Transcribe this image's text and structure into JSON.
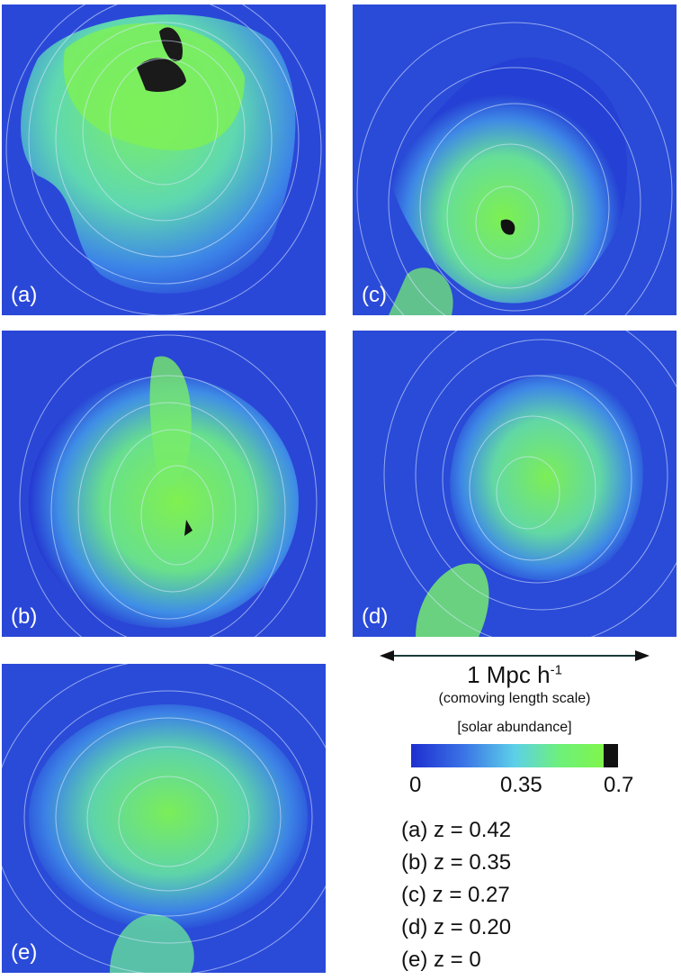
{
  "panels": [
    {
      "id": "a",
      "label": "(a)"
    },
    {
      "id": "b",
      "label": "(b)"
    },
    {
      "id": "c",
      "label": "(c)"
    },
    {
      "id": "d",
      "label": "(d)"
    },
    {
      "id": "e",
      "label": "(e)"
    }
  ],
  "scale_bar": {
    "length_text": "1 Mpc h",
    "exponent": "-1",
    "subtitle": "(comoving length scale)"
  },
  "colorbar": {
    "title": "[solar abundance]",
    "ticks": [
      "0",
      "0.35",
      "0.7"
    ],
    "colors": [
      "#1e2ed0",
      "#3a72e6",
      "#5dd0e8",
      "#6ef07a",
      "#7ff54c",
      "#111111"
    ]
  },
  "legend": [
    "(a) z = 0.42",
    "(b) z = 0.35",
    "(c) z = 0.27",
    "(d) z = 0.20",
    "(e) z = 0"
  ]
}
